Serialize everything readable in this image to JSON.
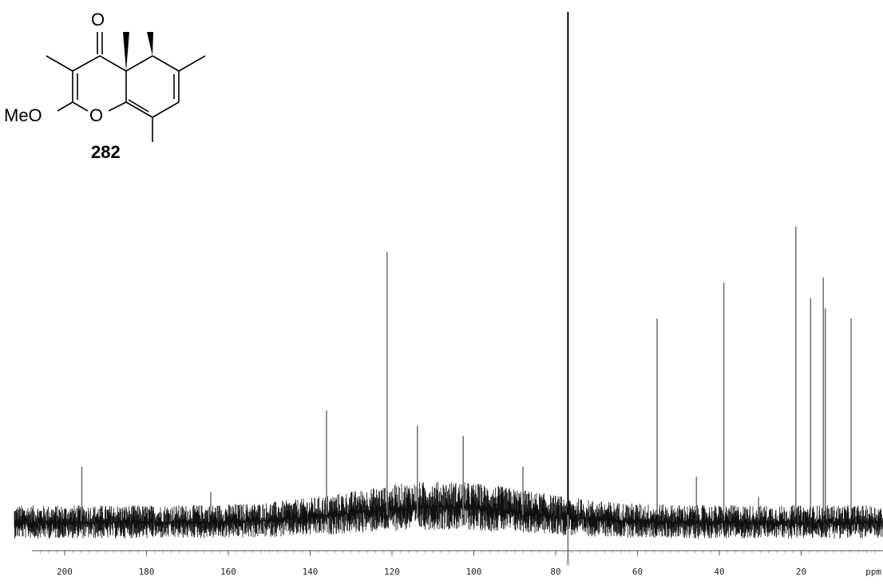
{
  "structure": {
    "compound_number": "282",
    "atom_labels": {
      "carbonyl_o": "O",
      "ring_o": "O",
      "methoxy": "MeO"
    }
  },
  "chart_data": {
    "type": "spectrum",
    "xlabel": "ppm",
    "x_axis_reversed": true,
    "xlim": [
      208,
      0
    ],
    "ticks": [
      200,
      180,
      160,
      140,
      120,
      100,
      80,
      60,
      40,
      20
    ],
    "peaks": [
      {
        "ppm": 195.8,
        "intensity": 0.11
      },
      {
        "ppm": 164.3,
        "intensity": 0.06
      },
      {
        "ppm": 136.0,
        "intensity": 0.22
      },
      {
        "ppm": 121.2,
        "intensity": 0.53
      },
      {
        "ppm": 113.8,
        "intensity": 0.19
      },
      {
        "ppm": 102.6,
        "intensity": 0.17
      },
      {
        "ppm": 88.0,
        "intensity": 0.11
      },
      {
        "ppm": 77.0,
        "intensity": 1.0
      },
      {
        "ppm": 55.2,
        "intensity": 0.4
      },
      {
        "ppm": 45.6,
        "intensity": 0.09
      },
      {
        "ppm": 38.9,
        "intensity": 0.47
      },
      {
        "ppm": 30.4,
        "intensity": 0.05
      },
      {
        "ppm": 21.3,
        "intensity": 0.58
      },
      {
        "ppm": 17.7,
        "intensity": 0.44
      },
      {
        "ppm": 14.6,
        "intensity": 0.48
      },
      {
        "ppm": 14.1,
        "intensity": 0.42
      },
      {
        "ppm": 7.8,
        "intensity": 0.4
      }
    ],
    "grid": false,
    "legend": "none"
  }
}
